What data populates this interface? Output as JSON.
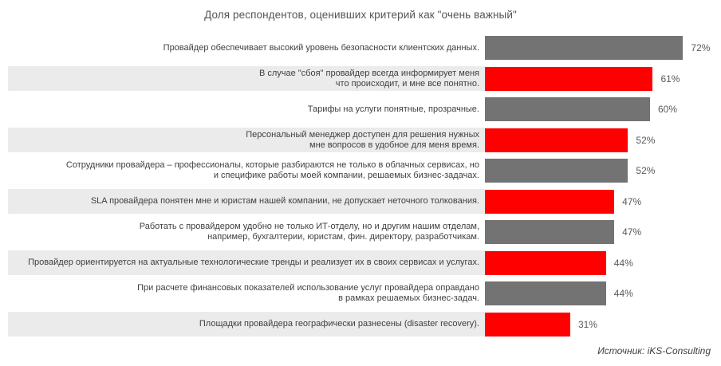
{
  "chart_data": {
    "type": "bar",
    "orientation": "horizontal",
    "title": "Доля респондентов, оценивших критерий как \"очень важный\"",
    "unit": "%",
    "xlim": [
      0,
      100
    ],
    "axis_hidden": true,
    "grid": false,
    "legend": null,
    "categories": [
      "Провайдер обеспечивает высокий уровень безопасности клиентских данных.",
      "В случае \"сбоя\" провайдер всегда информирует меня\nчто происходит, и мне все понятно.",
      "Тарифы на услуги понятные, прозрачные.",
      "Персональный менеджер доступен для решения нужных\nмне вопросов в удобное для меня время.",
      "Сотрудники провайдера – профессионалы, которые разбираются не только в облачных сервисах, но\nи специфике работы моей компании, решаемых бизнес-задачах.",
      "SLA провайдера понятен мне и юристам нашей компании, не допускает неточного толкования.",
      "Работать с провайдером удобно не только ИТ-отделу, но и другим нашим отделам,\nнапример, бухгалтерии, юристам, фин. директору, разработчикам.",
      "Провайдер ориентируется на актуальные технологические тренды и реализует их в своих сервисах и услугах.",
      "При расчете финансовых показателей использование услуг провайдера оправдано\nв рамках решаемых бизнес-задач.",
      "Площадки провайдера географически разнесены (disaster recovery)."
    ],
    "values": [
      72,
      61,
      60,
      52,
      52,
      47,
      47,
      44,
      44,
      31
    ],
    "value_labels": [
      "72%",
      "61%",
      "60%",
      "52%",
      "52%",
      "47%",
      "47%",
      "44%",
      "44%",
      "31%"
    ],
    "bar_colors": [
      "#737373",
      "#fe0000",
      "#737373",
      "#fe0000",
      "#737373",
      "#fe0000",
      "#737373",
      "#fe0000",
      "#737373",
      "#fe0000"
    ],
    "row_striped": [
      false,
      true,
      false,
      true,
      false,
      true,
      false,
      true,
      false,
      true
    ],
    "colors": {
      "gray_bar": "#737373",
      "red_bar": "#fe0000",
      "stripe_background": "#ebebeb"
    },
    "source_note": "Источник: iKS-Consulting"
  }
}
